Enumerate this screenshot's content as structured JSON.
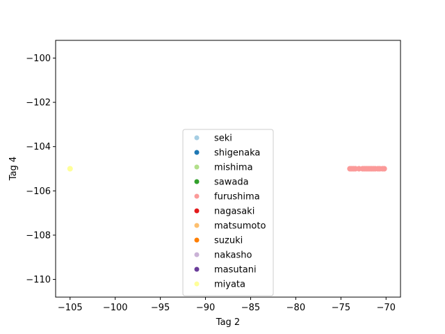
{
  "chart_data": {
    "type": "scatter",
    "title": "",
    "xlabel": "Tag 2",
    "ylabel": "Tag 4",
    "xlim": [
      -106.6,
      -68.4
    ],
    "ylim": [
      -110.8,
      -99.2
    ],
    "xticks": [
      -105,
      -100,
      -95,
      -90,
      -85,
      -80,
      -75,
      -70
    ],
    "yticks": [
      -110,
      -108,
      -106,
      -104,
      -102,
      -100
    ],
    "grid": false,
    "legend_position": "lower center",
    "series": [
      {
        "name": "seki",
        "color": "#a6cee3",
        "points": []
      },
      {
        "name": "shigenaka",
        "color": "#1f78b4",
        "points": []
      },
      {
        "name": "mishima",
        "color": "#b2df8a",
        "points": []
      },
      {
        "name": "sawada",
        "color": "#33a02c",
        "points": []
      },
      {
        "name": "furushima",
        "color": "#fb9a99",
        "points": [
          [
            -74.0,
            -105.0
          ],
          [
            -73.8,
            -105.0
          ],
          [
            -73.6,
            -105.0
          ],
          [
            -73.4,
            -105.0
          ],
          [
            -73.0,
            -105.0
          ],
          [
            -72.6,
            -105.0
          ],
          [
            -72.4,
            -105.0
          ],
          [
            -72.2,
            -105.0
          ],
          [
            -72.0,
            -105.0
          ],
          [
            -71.8,
            -105.0
          ],
          [
            -71.6,
            -105.0
          ],
          [
            -71.4,
            -105.0
          ],
          [
            -71.2,
            -105.0
          ],
          [
            -70.9,
            -105.0
          ],
          [
            -70.7,
            -105.0
          ],
          [
            -70.4,
            -105.0
          ],
          [
            -70.2,
            -105.0
          ]
        ]
      },
      {
        "name": "nagasaki",
        "color": "#e31a1c",
        "points": []
      },
      {
        "name": "matsumoto",
        "color": "#fdbf6f",
        "points": []
      },
      {
        "name": "suzuki",
        "color": "#ff7f00",
        "points": []
      },
      {
        "name": "nakasho",
        "color": "#cab2d6",
        "points": []
      },
      {
        "name": "masutani",
        "color": "#6a3d9a",
        "points": []
      },
      {
        "name": "miyata",
        "color": "#ffff99",
        "points": [
          [
            -105.0,
            -105.0
          ]
        ]
      }
    ]
  }
}
